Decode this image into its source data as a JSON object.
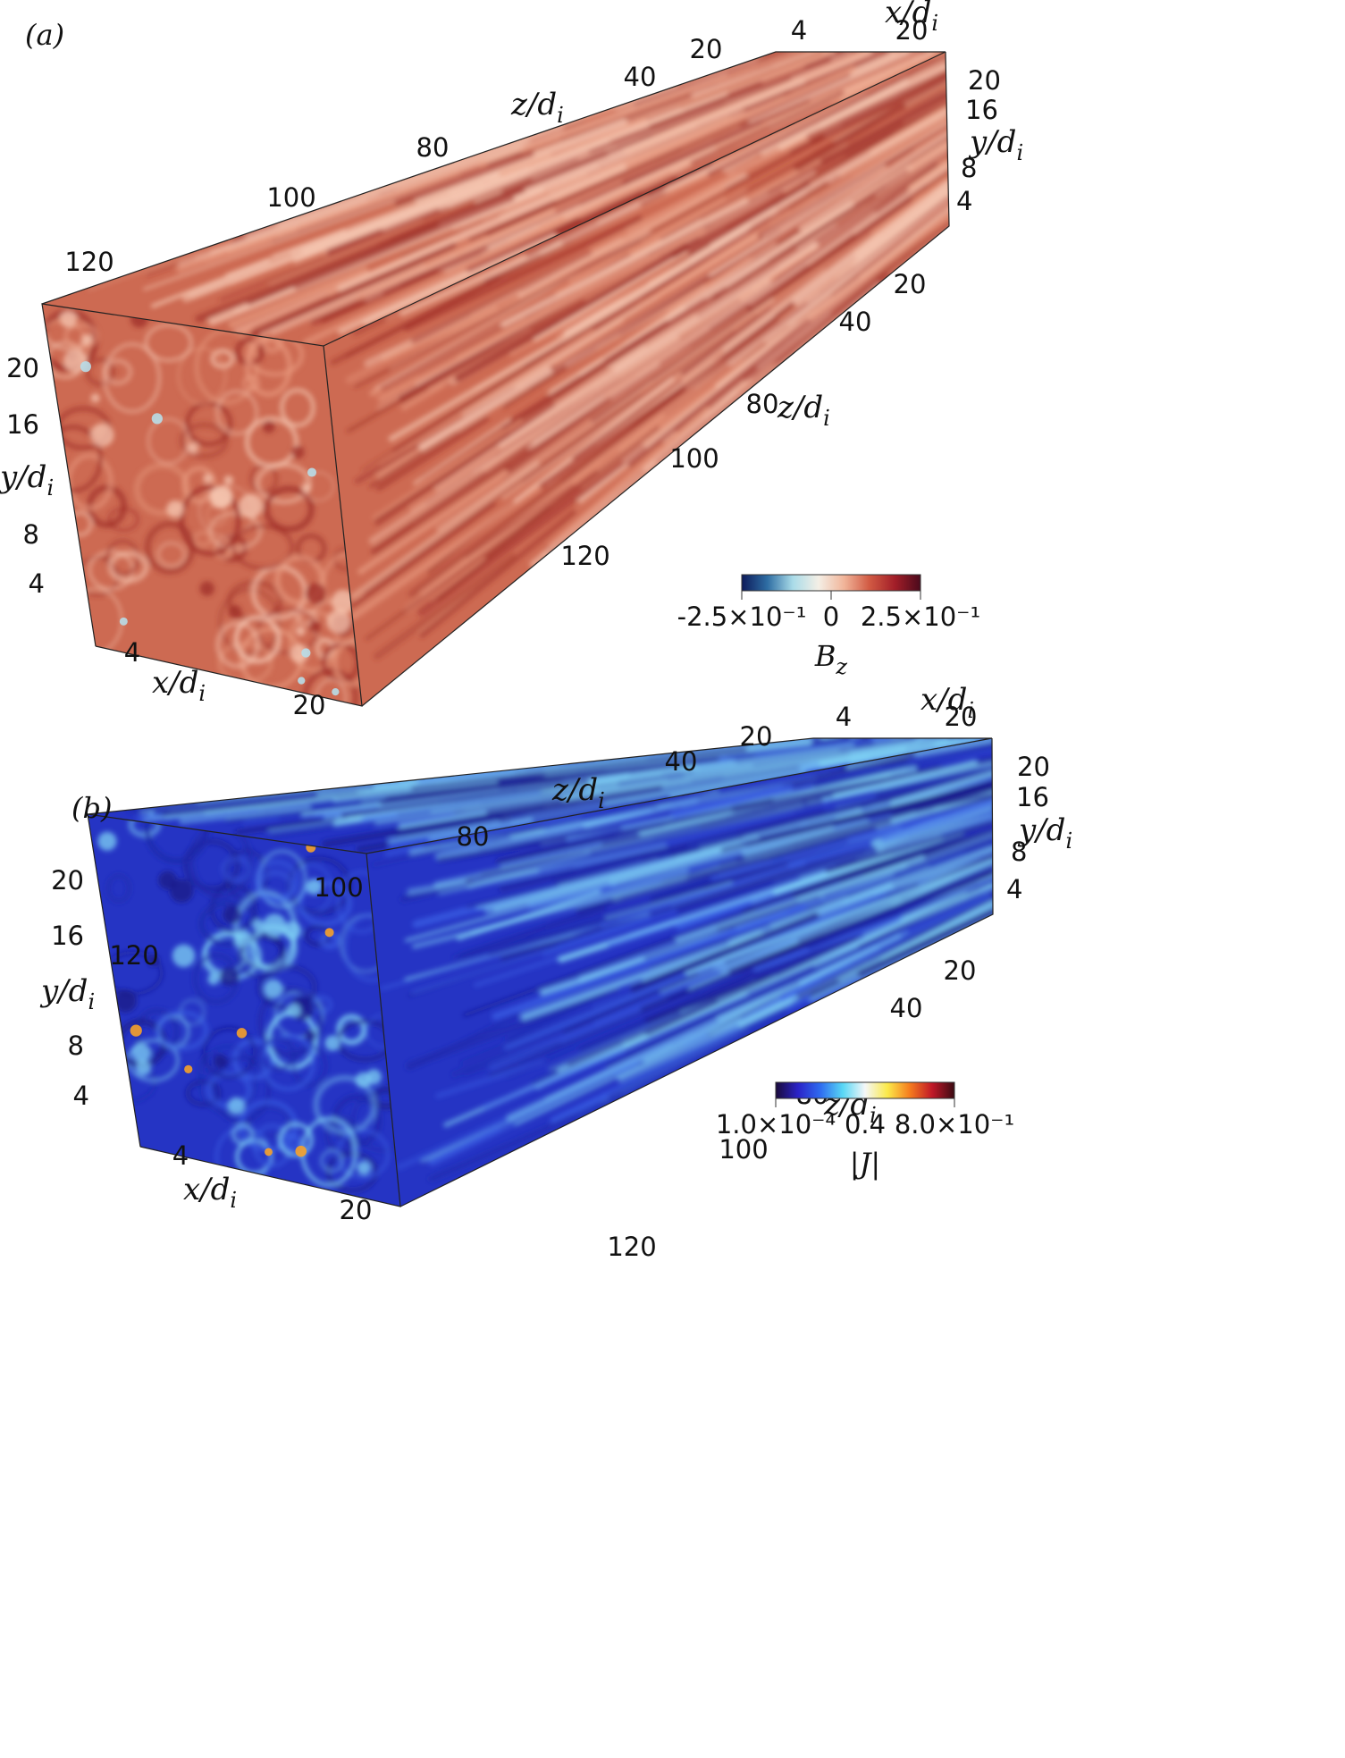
{
  "panels": [
    {
      "label": "(a)",
      "ticks": {
        "z_top": [
          "20",
          "40",
          "80",
          "100",
          "120"
        ],
        "x_top": [
          "4",
          "20"
        ],
        "y_right": [
          "20",
          "16",
          "8",
          "4"
        ],
        "z_side": [
          "20",
          "40",
          "80",
          "100",
          "120"
        ],
        "y_left": [
          "20",
          "16",
          "8",
          "4"
        ],
        "x_bottom": [
          "4",
          "20"
        ]
      },
      "axis_labels": {
        "x": {
          "base": "x/d",
          "sub": "i"
        },
        "y": {
          "base": "y/d",
          "sub": "i"
        },
        "z": {
          "base": "z/d",
          "sub": "i"
        }
      },
      "colorbar": {
        "title": "B",
        "title_sub": "z",
        "tick_labels": [
          "-2.5×10⁻¹",
          "0",
          "2.5×10⁻¹"
        ],
        "colors": [
          "#0c1a5a",
          "#2e6da3",
          "#a9dbe8",
          "#f4efe6",
          "#f1b59a",
          "#d15a43",
          "#a21e28",
          "#4a0a1c"
        ]
      },
      "field_colors": {
        "base": "#cd6a52",
        "light": "#f5c7b2",
        "dark": "#9e2e27",
        "cool": "#b8dde8"
      }
    },
    {
      "label": "(b)",
      "ticks": {
        "z_top": [
          "20",
          "40",
          "80",
          "100",
          "120"
        ],
        "x_top": [
          "4",
          "20"
        ],
        "y_right": [
          "20",
          "16",
          "8",
          "4"
        ],
        "z_side": [
          "20",
          "40",
          "80",
          "100",
          "120"
        ],
        "y_left": [
          "20",
          "16",
          "8",
          "4"
        ],
        "x_bottom": [
          "4",
          "20"
        ]
      },
      "axis_labels": {
        "x": {
          "base": "x/d",
          "sub": "i"
        },
        "y": {
          "base": "y/d",
          "sub": "i"
        },
        "z": {
          "base": "z/d",
          "sub": "i"
        }
      },
      "colorbar": {
        "title": "|J|",
        "title_sub": "",
        "tick_labels": [
          "1.0×10⁻⁴",
          "0.4",
          "8.0×10⁻¹"
        ],
        "colors": [
          "#1a0a3a",
          "#2a23c8",
          "#2f6cf0",
          "#58d7f5",
          "#f4f7f8",
          "#fbe94a",
          "#f57c1e",
          "#c01828",
          "#3a0a12"
        ]
      },
      "field_colors": {
        "base": "#2534c4",
        "light": "#7fd2f4",
        "dark": "#1a1a86",
        "hot": "#f6a12a"
      }
    }
  ]
}
